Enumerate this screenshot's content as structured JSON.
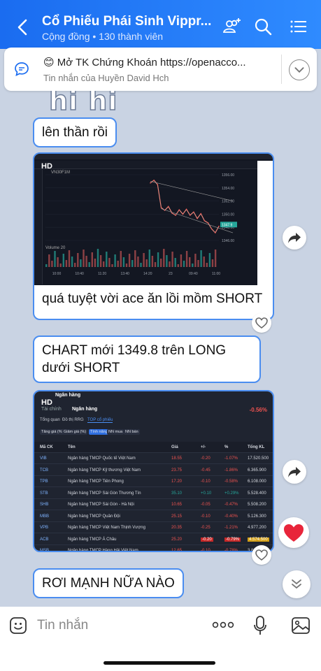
{
  "header": {
    "title": "Cổ Phiếu Phái Sinh Vippr...",
    "subtitle": "Cộng đồng • 130 thành viên"
  },
  "pinned": {
    "text": "😊 Mở TK Chứng Khoán https://openacco...",
    "sender": "Tin nhắn của Huyền David Hch"
  },
  "messages": {
    "sticker_text": "hi hi",
    "msg1": "lên thần rồi",
    "msg2_caption": "quá tuyệt vời ace ăn lồi mồm SHORT",
    "msg3": "CHART mới 1349.8 trên LONG dưới SHORT",
    "msg4": "RƠI MẠNH NỮA NÀO"
  },
  "chart_image": {
    "watermark": "HD",
    "symbol": "VN30F1M",
    "price_label": "1347.9",
    "y_ticks": [
      "1356.00",
      "1354.00",
      "1352.00",
      "1350.00",
      "1348.00",
      "1346.00"
    ],
    "x_ticks": [
      "10:00",
      "10:40",
      "11:20",
      "13:40",
      "14:20",
      "23",
      "09:40",
      "11:00"
    ],
    "volume_label": "Volume 20",
    "chart_data": {
      "type": "line",
      "title": "",
      "xlabel": "",
      "ylabel": "",
      "x": [
        0,
        1,
        2,
        3,
        4,
        5,
        6,
        7,
        8,
        9,
        10,
        11,
        12,
        13,
        14,
        15,
        16,
        17,
        18,
        19
      ],
      "series": [
        {
          "values": [
            1355.5,
            1356.0,
            1355.2,
            1351.0,
            1350.5,
            1351.2,
            1350.0,
            1349.6,
            1350.6,
            1349.8,
            1350.7,
            1349.6,
            1350.2,
            1349.0,
            1349.9,
            1348.6,
            1348.2,
            1347.1,
            1346.4,
            1347.6
          ]
        }
      ],
      "ylim": [
        1345,
        1357
      ]
    }
  },
  "table_image": {
    "watermark": "HD",
    "app_title": "Ngân hàng",
    "breadcrumb_parent": "Tài chính",
    "breadcrumb_current": "Ngân hàng",
    "change_pct": "-0.56%",
    "tabs": [
      "Tổng quan",
      "Đồ thị RRG",
      "TOP cổ phiếu"
    ],
    "sub_tabs": [
      "Tăng giá (%)",
      "Giảm giá (%)",
      "Tính năng",
      "NN mua",
      "NN bán"
    ],
    "columns": [
      "Mã CK",
      "Tên",
      "Giá",
      "+/-",
      "%",
      "Tổng KL"
    ],
    "rows": [
      {
        "code": "VIB",
        "name": "Ngân hàng TMCP Quốc tế Việt Nam",
        "price": "18.55",
        "chg": "-0.20",
        "pct": "-1.07%",
        "vol": "17.520.500"
      },
      {
        "code": "TCB",
        "name": "Ngân hàng TMCP Kỹ thương Việt Nam",
        "price": "23.75",
        "chg": "-0.45",
        "pct": "-1.86%",
        "vol": "6.365.900"
      },
      {
        "code": "TPB",
        "name": "Ngân hàng TMCP Tiên Phong",
        "price": "17.20",
        "chg": "-0.10",
        "pct": "-0.58%",
        "vol": "6.108.000"
      },
      {
        "code": "STB",
        "name": "Ngân hàng TMCP Sài Gòn Thương Tín",
        "price": "35.10",
        "chg": "+0.10",
        "pct": "+0.29%",
        "vol": "5.528.400"
      },
      {
        "code": "SHB",
        "name": "Ngân hàng TMCP Sài Gòn - Hà Nội",
        "price": "10.65",
        "chg": "-0.05",
        "pct": "-0.47%",
        "vol": "5.508.200"
      },
      {
        "code": "MBB",
        "name": "Ngân hàng TMCP Quân Đội",
        "price": "25.15",
        "chg": "-0.10",
        "pct": "-0.40%",
        "vol": "5.126.300"
      },
      {
        "code": "VPB",
        "name": "Ngân hàng TMCP Việt Nam Thịnh Vượng",
        "price": "20.35",
        "chg": "-0.25",
        "pct": "-1.21%",
        "vol": "4.977.200"
      },
      {
        "code": "ACB",
        "name": "Ngân hàng TMCP Á Châu",
        "price": "25.20",
        "chg": "-0.20",
        "pct": "-0.79%",
        "vol": "4.574.500"
      },
      {
        "code": "MSB",
        "name": "Ngân hàng TMCP Hàng Hải Việt Nam",
        "price": "12.65",
        "chg": "-0.10",
        "pct": "-0.78%",
        "vol": "3.819.400"
      }
    ]
  },
  "composer": {
    "placeholder": "Tin nhắn"
  },
  "colors": {
    "header": "#1a6cf0",
    "bubble_border": "#4a8df0",
    "heart": "#e8253a",
    "negative": "#ef5350",
    "positive": "#26a69a"
  }
}
